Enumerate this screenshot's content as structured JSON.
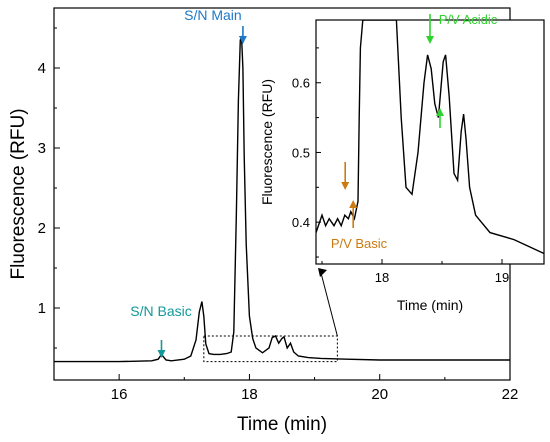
{
  "colors": {
    "trace": "#000000",
    "sn_main": "#1f78c8",
    "sn_basic": "#12999a",
    "pv_acidic": "#2ed32e",
    "pv_basic": "#cc7a12"
  },
  "chart_data": [
    {
      "type": "line",
      "xlabel": "Time (min)",
      "ylabel": "Fluorescence (RFU)",
      "xlim": [
        15,
        22
      ],
      "ylim": [
        0.1,
        4.75
      ],
      "x_ticks": [
        "16",
        "18",
        "20",
        "22"
      ],
      "y_ticks": [
        "1",
        "2",
        "3",
        "4"
      ],
      "grid": false,
      "series": [
        {
          "x": [
            15.0,
            15.5,
            16.0,
            16.5,
            16.6,
            16.65,
            16.68,
            16.72,
            16.8,
            17.0,
            17.1,
            17.18,
            17.23,
            17.27,
            17.3,
            17.33,
            17.38,
            17.45,
            17.55,
            17.65,
            17.72,
            17.76,
            17.8,
            17.83,
            17.86,
            17.88,
            17.9,
            17.92,
            17.95,
            18.0,
            18.05,
            18.1,
            18.2,
            18.3,
            18.35,
            18.4,
            18.45,
            18.5,
            18.53,
            18.58,
            18.63,
            18.68,
            18.75,
            18.9,
            19.1,
            19.5,
            20.0,
            21.0,
            22.0
          ],
          "y": [
            0.33,
            0.33,
            0.33,
            0.34,
            0.36,
            0.42,
            0.39,
            0.35,
            0.34,
            0.36,
            0.4,
            0.6,
            0.95,
            1.08,
            0.9,
            0.55,
            0.43,
            0.42,
            0.42,
            0.43,
            0.45,
            0.7,
            2.2,
            3.6,
            4.35,
            4.38,
            4.0,
            2.9,
            1.8,
            0.9,
            0.62,
            0.5,
            0.44,
            0.5,
            0.63,
            0.65,
            0.56,
            0.62,
            0.64,
            0.5,
            0.56,
            0.45,
            0.4,
            0.38,
            0.37,
            0.36,
            0.35,
            0.35,
            0.35
          ]
        }
      ],
      "annotations": [
        {
          "text": "S/N Main",
          "x": 17.9,
          "color": "#1f78c8"
        },
        {
          "text": "S/N Basic",
          "x": 16.65,
          "color": "#12999a"
        }
      ],
      "zoom_box": {
        "x": [
          17.3,
          19.35
        ],
        "y": [
          0.33,
          0.65
        ]
      }
    },
    {
      "type": "line",
      "xlabel": "Time (min)",
      "ylabel": "Fluorescence (RFU)",
      "xlim": [
        17.45,
        19.35
      ],
      "ylim": [
        0.34,
        0.69
      ],
      "x_ticks": [
        "18",
        "19"
      ],
      "y_ticks": [
        "0.4",
        "0.5",
        "0.6"
      ],
      "grid": false,
      "series": [
        {
          "x": [
            17.45,
            17.5,
            17.53,
            17.56,
            17.6,
            17.63,
            17.66,
            17.69,
            17.72,
            17.74,
            17.77,
            17.8,
            17.81,
            17.82,
            17.84,
            18.12,
            18.16,
            18.2,
            18.25,
            18.3,
            18.35,
            18.38,
            18.41,
            18.44,
            18.47,
            18.49,
            18.51,
            18.53,
            18.56,
            18.6,
            18.63,
            18.66,
            18.68,
            18.7,
            18.73,
            18.78,
            18.9,
            19.1,
            19.35
          ],
          "y": [
            0.385,
            0.41,
            0.395,
            0.405,
            0.395,
            0.405,
            0.395,
            0.41,
            0.405,
            0.415,
            0.405,
            0.43,
            0.55,
            0.65,
            0.69,
            0.69,
            0.55,
            0.45,
            0.44,
            0.5,
            0.6,
            0.64,
            0.62,
            0.57,
            0.55,
            0.59,
            0.63,
            0.64,
            0.58,
            0.47,
            0.46,
            0.53,
            0.555,
            0.52,
            0.45,
            0.41,
            0.385,
            0.375,
            0.355
          ]
        }
      ],
      "annotations": [
        {
          "text": "P/V Acidic",
          "x": 18.4,
          "color": "#2ed32e"
        },
        {
          "text": "P/V Basic",
          "x": 17.76,
          "color": "#cc7a12"
        }
      ]
    }
  ]
}
